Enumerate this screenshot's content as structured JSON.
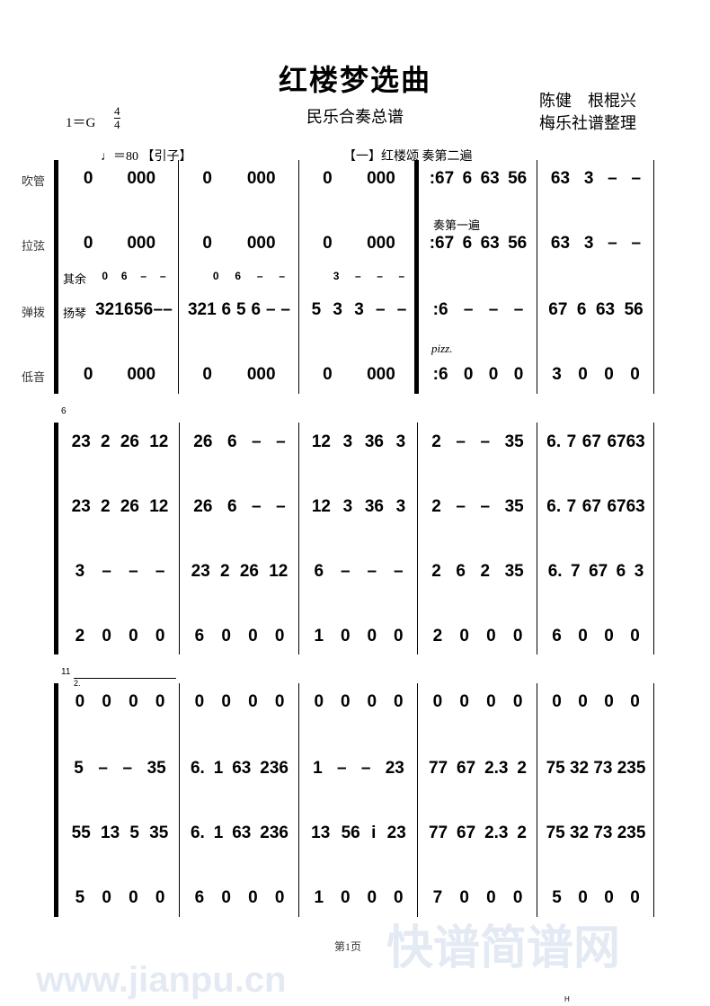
{
  "header": {
    "title": "红楼梦选曲",
    "subtitle": "民乐合奏总谱",
    "credits_line1": "陈健　根棍兴",
    "credits_line2": "梅乐社谱整理",
    "key": "1＝G",
    "time_sig_top": "4",
    "time_sig_bottom": "4",
    "tempo": "♩＝80",
    "intro_label": "【引子】",
    "section_label": "【一】红楼颂 奏第二遍",
    "repeat_note": "奏第一遍",
    "pizz": "pizz.",
    "qiyu": "其余",
    "yangqin": "扬琴"
  },
  "instruments": [
    "吹管",
    "拉弦",
    "弹拨",
    "低音"
  ],
  "systems": [
    {
      "measure_number": "",
      "rows": [
        [
          "0 000",
          "0 000",
          "0 000",
          ":67 6 63 56",
          "63 3 – –"
        ],
        [
          "0 000",
          "0 000",
          "0 000",
          ":67 6 63 56",
          "63 3 – –"
        ],
        [
          "321 6 5 6 – –",
          "321 6 5 6 – –",
          "5 3 3 – –",
          ":6 – – –",
          "67 6 63 56"
        ],
        [
          "0 000",
          "0 000",
          "0 000",
          ":6 0 0 0",
          "3 0 0 0"
        ]
      ],
      "qiyu_row": [
        "0 6 – –",
        "0 6 – –",
        "3 – – –"
      ]
    },
    {
      "measure_number": "6",
      "rows": [
        [
          "23 2 26 12",
          "26 6 – –",
          "12 3 36 3",
          "2 – – 35",
          "6. 7 67 6763"
        ],
        [
          "23 2 26 12",
          "26 6 – –",
          "12 3 36 3",
          "2 – – 35",
          "6. 7 67 6763"
        ],
        [
          "3 – – –",
          "23 2 26 12",
          "6 – – –",
          "2 6 2 35",
          "6. 7 67 6 3"
        ],
        [
          "2 0 0 0",
          "6 0 0 0",
          "1 0 0 0",
          "2 0 0 0",
          "6 0 0 0"
        ]
      ]
    },
    {
      "measure_number": "11",
      "ending": "2.",
      "rows": [
        [
          "0 0 0 0",
          "0 0 0 0",
          "0 0 0 0",
          "0 0 0 0",
          "0 0 0 0"
        ],
        [
          "5 – – 35",
          "6. 1 63 236",
          "1 – – 23",
          "77 67 2.3 2",
          "75 32 73 235"
        ],
        [
          "55 13 5 35",
          "6. 1 63 236",
          "13 56 i 23",
          "77 67 2.3 2",
          "75 32 73 235"
        ],
        [
          "5 0 0 0",
          "6 0 0 0",
          "1 0 0 0",
          "7 0 0 0",
          "5 0 0 0"
        ]
      ]
    }
  ],
  "footer": {
    "page": "第1页",
    "mark": "H"
  },
  "watermark": {
    "text1": "快谱简谱网",
    "text2": "www.jianpu.cn"
  }
}
